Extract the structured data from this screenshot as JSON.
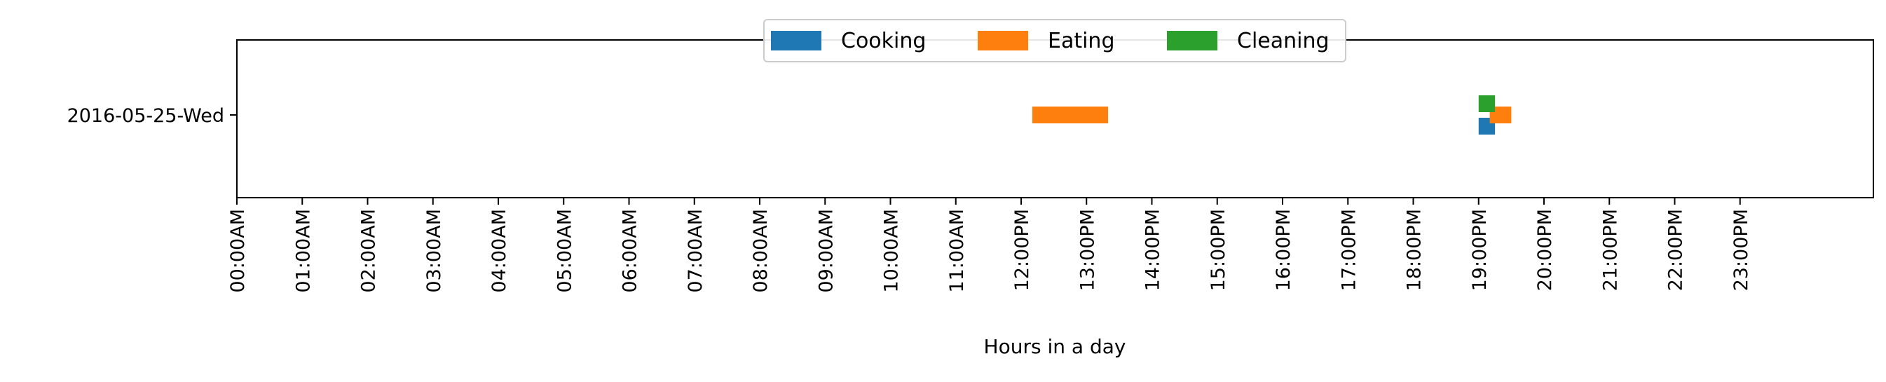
{
  "chart_data": {
    "type": "bar",
    "orientation": "horizontal-timeline",
    "title": "",
    "xlabel": "Hours in a day",
    "ylabel": "",
    "xlim": [
      0,
      24
    ],
    "categories": [
      "2016-05-25-Wed"
    ],
    "x_ticks": [
      {
        "value": 0,
        "label": "00:00AM"
      },
      {
        "value": 1,
        "label": "01:00AM"
      },
      {
        "value": 2,
        "label": "02:00AM"
      },
      {
        "value": 3,
        "label": "03:00AM"
      },
      {
        "value": 4,
        "label": "04:00AM"
      },
      {
        "value": 5,
        "label": "05:00AM"
      },
      {
        "value": 6,
        "label": "06:00AM"
      },
      {
        "value": 7,
        "label": "07:00AM"
      },
      {
        "value": 8,
        "label": "08:00AM"
      },
      {
        "value": 9,
        "label": "09:00AM"
      },
      {
        "value": 10,
        "label": "10:00AM"
      },
      {
        "value": 11,
        "label": "11:00AM"
      },
      {
        "value": 12,
        "label": "12:00PM"
      },
      {
        "value": 13,
        "label": "13:00PM"
      },
      {
        "value": 14,
        "label": "14:00PM"
      },
      {
        "value": 15,
        "label": "15:00PM"
      },
      {
        "value": 16,
        "label": "16:00PM"
      },
      {
        "value": 17,
        "label": "17:00PM"
      },
      {
        "value": 18,
        "label": "18:00PM"
      },
      {
        "value": 19,
        "label": "19:00PM"
      },
      {
        "value": 20,
        "label": "20:00PM"
      },
      {
        "value": 21,
        "label": "21:00PM"
      },
      {
        "value": 22,
        "label": "22:00PM"
      },
      {
        "value": 23,
        "label": "23:00PM"
      }
    ],
    "series": [
      {
        "name": "Cooking",
        "color": "#1f77b4",
        "intervals": [
          {
            "day": "2016-05-25-Wed",
            "start": 19.0,
            "end": 19.25
          }
        ]
      },
      {
        "name": "Eating",
        "color": "#ff7f0e",
        "intervals": [
          {
            "day": "2016-05-25-Wed",
            "start": 12.17,
            "end": 13.33
          },
          {
            "day": "2016-05-25-Wed",
            "start": 19.17,
            "end": 19.5
          }
        ]
      },
      {
        "name": "Cleaning",
        "color": "#2ca02c",
        "intervals": [
          {
            "day": "2016-05-25-Wed",
            "start": 19.0,
            "end": 19.25
          }
        ]
      }
    ],
    "legend": {
      "position": "top-center",
      "columns": 3
    },
    "grid": false
  }
}
